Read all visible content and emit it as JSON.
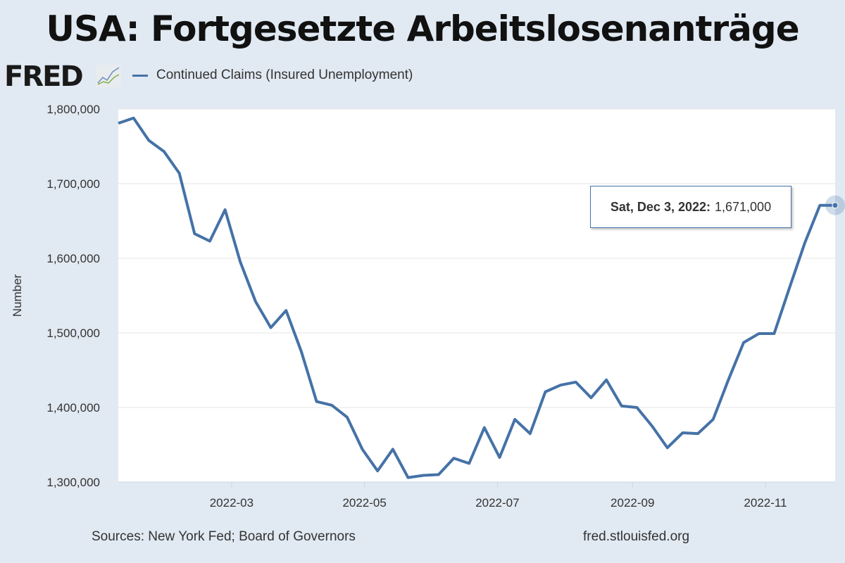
{
  "title": "USA: Fortgesetzte Arbeitslosenanträge",
  "logo": "FRED",
  "source": "Sources: New York Fed; Board of Governors",
  "site": "fred.stlouisfed.org",
  "tooltip": {
    "date": "Sat, Dec 3, 2022:",
    "value": "1,671,000"
  },
  "colors": {
    "line": "#4572a7",
    "plot_bg": "#ffffff",
    "page_bg": "#e1e9f2"
  },
  "chart_data": {
    "type": "line",
    "title": "USA: Fortgesetzte Arbeitslosenanträge",
    "ylabel": "Number",
    "xlabel": "",
    "ylim": [
      1300000,
      1800000
    ],
    "yticks": [
      1300000,
      1400000,
      1500000,
      1600000,
      1700000,
      1800000
    ],
    "ytick_labels": [
      "1,300,000",
      "1,400,000",
      "1,500,000",
      "1,600,000",
      "1,700,000",
      "1,800,000"
    ],
    "xlim": [
      "2022-01-08",
      "2022-12-03"
    ],
    "xticks": [
      "2022-03-01",
      "2022-05-01",
      "2022-07-01",
      "2022-09-01",
      "2022-11-01"
    ],
    "xtick_labels": [
      "2022-03",
      "2022-05",
      "2022-07",
      "2022-09",
      "2022-11"
    ],
    "grid": true,
    "legend": "top-left",
    "series": [
      {
        "name": "Continued Claims (Insured Unemployment)",
        "start": "2022-01-08",
        "interval_days": 7,
        "values": [
          1781000,
          1788000,
          1758000,
          1743000,
          1714000,
          1633000,
          1623000,
          1665000,
          1595000,
          1542000,
          1507000,
          1530000,
          1475000,
          1408000,
          1403000,
          1387000,
          1344000,
          1315000,
          1344000,
          1306000,
          1309000,
          1310000,
          1332000,
          1325000,
          1373000,
          1333000,
          1384000,
          1365000,
          1421000,
          1430000,
          1434000,
          1413000,
          1437000,
          1402000,
          1400000,
          1375000,
          1346000,
          1366000,
          1365000,
          1384000,
          1437000,
          1487000,
          1499000,
          1499000,
          1560000,
          1620000,
          1671000,
          1671000
        ]
      }
    ]
  }
}
